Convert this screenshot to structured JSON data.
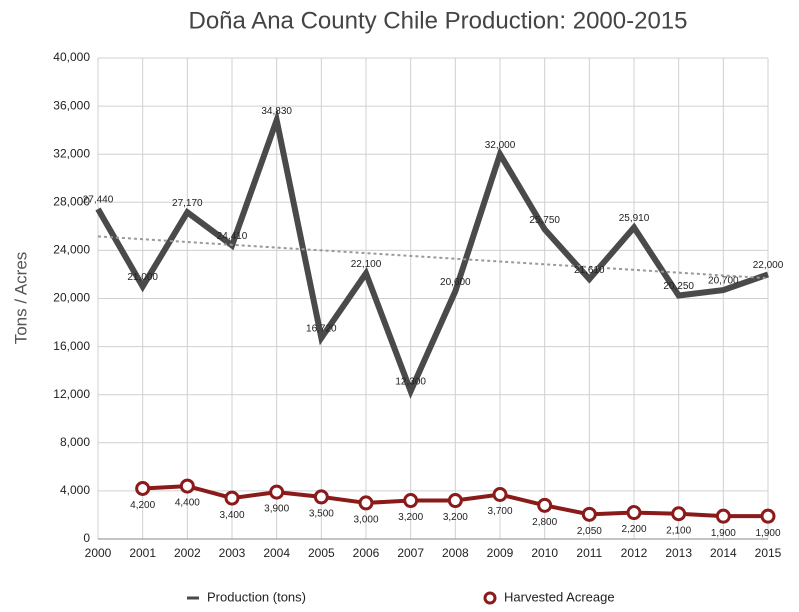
{
  "chart_data": {
    "type": "line",
    "title": "Doña Ana County Chile Production: 2000-2015",
    "y_label": "Tons / Acres",
    "categories": [
      "2000",
      "2001",
      "2002",
      "2003",
      "2004",
      "2005",
      "2006",
      "2007",
      "2008",
      "2009",
      "2010",
      "2011",
      "2012",
      "2013",
      "2014",
      "2015"
    ],
    "series": [
      {
        "name": "Production (tons)",
        "color": "#4a4a4a",
        "values": [
          27440,
          21000,
          27170,
          24410,
          34830,
          16720,
          22100,
          12300,
          20600,
          32000,
          25750,
          21610,
          25910,
          20250,
          20700,
          22000
        ],
        "value_labels": [
          "27,440",
          "21,000",
          "27,170",
          "24,410",
          "34,830",
          "16,720",
          "22,100",
          "12,300",
          "20,600",
          "32,000",
          "25,750",
          "21,610",
          "25,910",
          "20,250",
          "20,700",
          "22,000"
        ],
        "trendline": true
      },
      {
        "name": "Harvested Acreage",
        "color": "#8b1a1a",
        "values": [
          null,
          4200,
          4400,
          3400,
          3900,
          3500,
          3000,
          3200,
          3200,
          3700,
          2800,
          2050,
          2200,
          2100,
          1900,
          1900
        ],
        "value_labels": [
          null,
          "4,200",
          "4,400",
          "3,400",
          "3,900",
          "3,500",
          "3,000",
          "3,200",
          "3,200",
          "3,700",
          "2,800",
          "2,050",
          "2,200",
          "2,100",
          "1,900",
          "1,900"
        ],
        "markers": true
      }
    ],
    "ylim": [
      0,
      40000
    ],
    "yticks": [
      0,
      {
        "value": 4000,
        "label": "4,000"
      },
      {
        "value": 8000,
        "label": "8,000"
      },
      {
        "value": 12000,
        "label": "12,000"
      },
      {
        "value": 16000,
        "label": "16,000"
      },
      {
        "value": 20000,
        "label": "20,000"
      },
      {
        "value": 24000,
        "label": "24,000"
      },
      {
        "value": 28000,
        "label": "28,000"
      },
      {
        "value": 32000,
        "label": "32,000"
      },
      {
        "value": 36000,
        "label": "36,000"
      },
      {
        "value": 40000,
        "label": "40,000"
      }
    ],
    "grid": true,
    "legend": "bottom"
  }
}
